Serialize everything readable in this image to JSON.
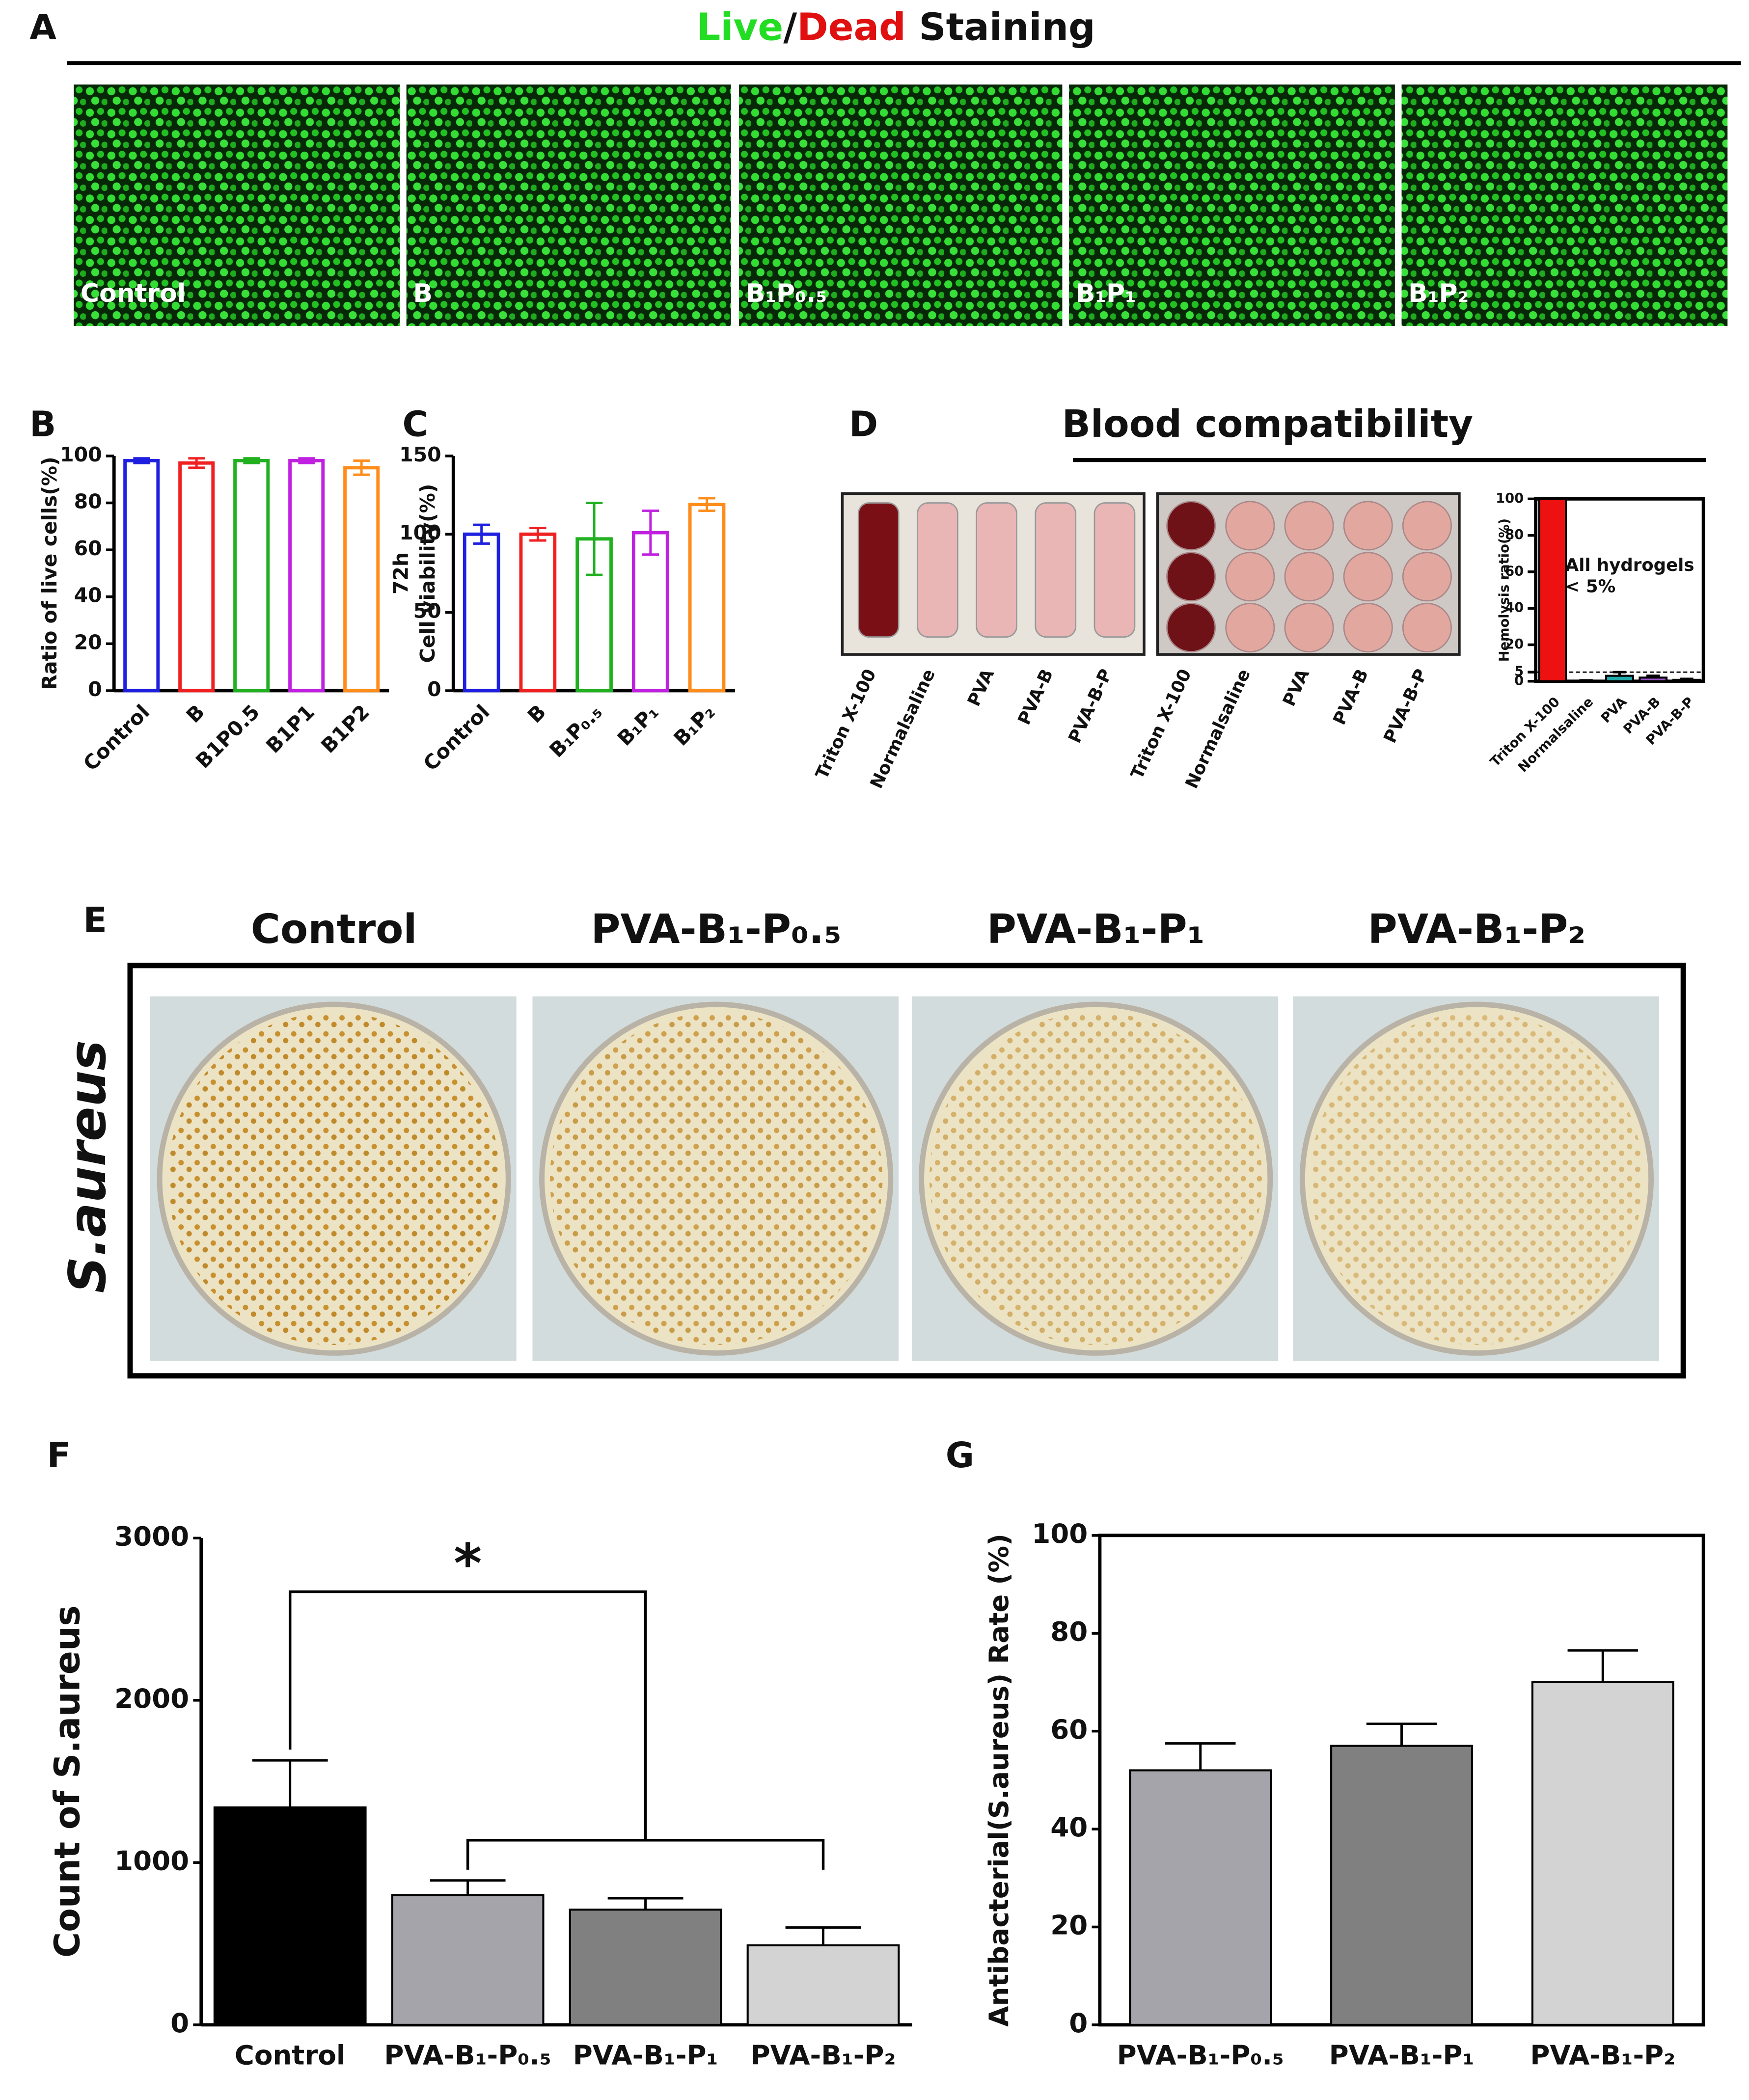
{
  "figure": {
    "panel_labels": [
      "A",
      "B",
      "C",
      "D",
      "E",
      "F",
      "G"
    ],
    "staining_title": [
      {
        "text": "Live",
        "color": "#22dd22"
      },
      {
        "text": "/",
        "color": "#111111"
      },
      {
        "text": "Dead",
        "color": "#e01010"
      },
      {
        "text": " Staining",
        "color": "#111111"
      }
    ],
    "staining_images": [
      "Control",
      "B",
      "B₁P₀.₅",
      "B₁P₁",
      "B₁P₂"
    ],
    "blood_title": "Blood compatibility",
    "blood_photo_labels": [
      "Triton X-100",
      "Normalsaline",
      "PVA",
      "PVA-B",
      "PVA-B-P"
    ],
    "plate_headers": [
      "Control",
      "PVA-B₁-P₀.₅",
      "PVA-B₁-P₁",
      "PVA-B₁-P₂"
    ],
    "plate_row_label": "S.aureus"
  },
  "chart_data": [
    {
      "type": "bar",
      "ylabel": [
        "Ratio of live cells(%)"
      ],
      "categories": [
        "Control",
        "B",
        "B1P0.5",
        "B1P1",
        "B1P2"
      ],
      "values": [
        98,
        97,
        98,
        98,
        95
      ],
      "errors": [
        1,
        2,
        1,
        1,
        3
      ],
      "colors": [
        "#1f1fe0",
        "#f02020",
        "#20b020",
        "#c020e0",
        "#ff8c1a"
      ],
      "hollow": true,
      "ylim": [
        0,
        100
      ],
      "yticks": [
        0,
        20,
        40,
        60,
        80,
        100
      ]
    },
    {
      "type": "bar",
      "ylabel": [
        "72h",
        "Cell viability(%)"
      ],
      "categories": [
        "Control",
        "B",
        "B₁P₀.₅",
        "B₁P₁",
        "B₁P₂"
      ],
      "values": [
        100,
        100,
        97,
        101,
        119
      ],
      "errors": [
        6,
        4,
        23,
        14,
        4
      ],
      "colors": [
        "#1f1fe0",
        "#f02020",
        "#20b020",
        "#c020e0",
        "#ff8c1a"
      ],
      "hollow": true,
      "ylim": [
        0,
        150
      ],
      "yticks": [
        0,
        50,
        100,
        150
      ]
    },
    {
      "type": "bar",
      "ylabel": [
        "Hemolysis ratio(%)"
      ],
      "categories": [
        "Triton X-100",
        "Normalsaline",
        "PVA",
        "PVA-B",
        "PVA-B-P"
      ],
      "values": [
        100,
        0.3,
        3,
        2,
        0.8
      ],
      "errors": [
        0,
        0.2,
        2,
        1,
        0.5
      ],
      "colors": [
        "#ee1111",
        "#222222",
        "#22aaaa",
        "#9a55cc",
        "#449944"
      ],
      "hollow": false,
      "threshold": 5,
      "annotation": [
        "All hydrogels",
        "< 5%"
      ],
      "ylim": [
        0,
        100
      ],
      "yticks": [
        0,
        5,
        20,
        40,
        60,
        80,
        100
      ]
    },
    {
      "type": "bar",
      "ylabel": [
        "Count of S.aureus"
      ],
      "categories": [
        "Control",
        "PVA-B₁-P₀.₅",
        "PVA-B₁-P₁",
        "PVA-B₁-P₂"
      ],
      "values": [
        1340,
        800,
        710,
        490
      ],
      "errors": [
        290,
        90,
        70,
        110
      ],
      "colors": [
        "#000000",
        "#a5a4ab",
        "#7f807f",
        "#d3d3d3"
      ],
      "hollow": false,
      "annotation": [
        "*"
      ],
      "ylim": [
        0,
        3000
      ],
      "yticks": [
        0,
        1000,
        2000,
        3000
      ]
    },
    {
      "type": "bar",
      "ylabel": [
        "Antibacterial(S.aureus) Rate (%)"
      ],
      "categories": [
        "PVA-B₁-P₀.₅",
        "PVA-B₁-P₁",
        "PVA-B₁-P₂"
      ],
      "values": [
        52,
        57,
        70
      ],
      "errors": [
        5.5,
        4.5,
        6.5
      ],
      "colors": [
        "#a5a4ab",
        "#7f807f",
        "#d3d3d3"
      ],
      "hollow": false,
      "ylim": [
        0,
        100
      ],
      "yticks": [
        0,
        20,
        40,
        60,
        80,
        100
      ]
    }
  ]
}
